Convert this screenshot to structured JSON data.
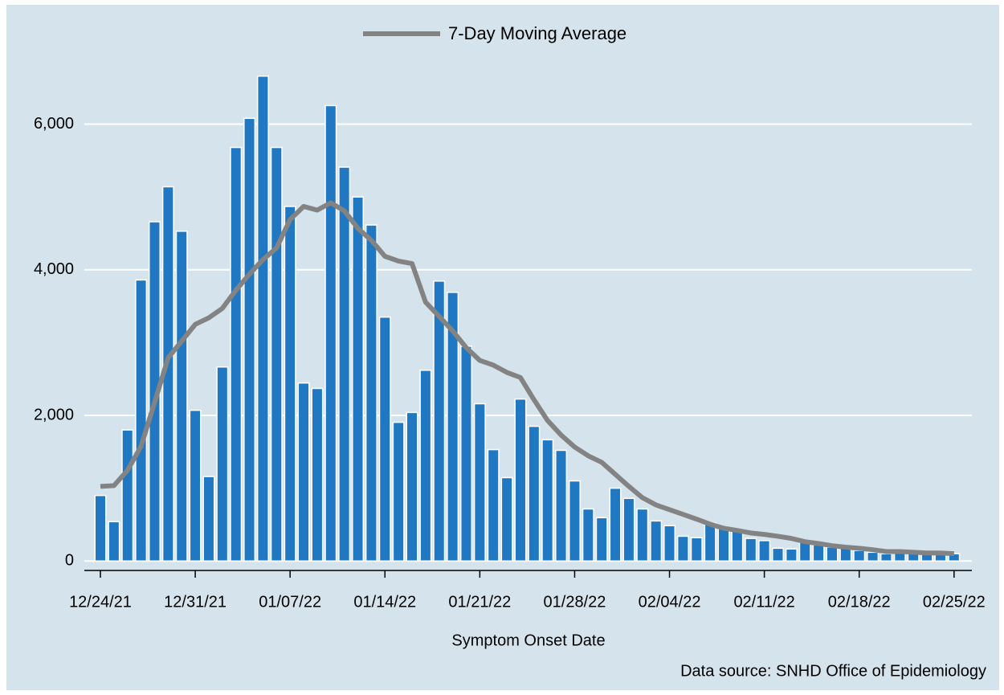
{
  "chart_data": {
    "type": "bar",
    "categories": [
      "12/24/21",
      null,
      null,
      null,
      null,
      null,
      null,
      "12/31/21",
      null,
      null,
      null,
      null,
      null,
      null,
      "01/07/22",
      null,
      null,
      null,
      null,
      null,
      null,
      "01/14/22",
      null,
      null,
      null,
      null,
      null,
      null,
      "01/21/22",
      null,
      null,
      null,
      null,
      null,
      null,
      "01/28/22",
      null,
      null,
      null,
      null,
      null,
      null,
      "02/04/22",
      null,
      null,
      null,
      null,
      null,
      null,
      "02/11/22",
      null,
      null,
      null,
      null,
      null,
      null,
      "02/18/22",
      null,
      null,
      null,
      null,
      null,
      null,
      "02/25/22"
    ],
    "series": [
      {
        "type": "bar",
        "color": "#1f78c1",
        "values": [
          900,
          540,
          1800,
          3860,
          4660,
          5140,
          4530,
          2070,
          1160,
          2665,
          5680,
          6080,
          6660,
          5680,
          4870,
          2445,
          2370,
          6255,
          5410,
          5000,
          4615,
          3350,
          1905,
          2040,
          2620,
          3845,
          3690,
          2950,
          2160,
          1530,
          1145,
          2225,
          1850,
          1665,
          1520,
          1100,
          715,
          595,
          1000,
          860,
          715,
          550,
          485,
          340,
          320,
          520,
          455,
          410,
          310,
          280,
          175,
          165,
          255,
          220,
          190,
          200,
          145,
          120,
          100,
          110,
          120,
          120,
          120,
          100
        ]
      },
      {
        "type": "line",
        "name": "7-Day Moving Average",
        "color": "#838383",
        "values": [
          1025,
          1035,
          1245,
          1575,
          2180,
          2790,
          3020,
          3250,
          3340,
          3470,
          3720,
          3940,
          4140,
          4300,
          4690,
          4870,
          4820,
          4920,
          4810,
          4570,
          4405,
          4185,
          4120,
          4085,
          3555,
          3360,
          3160,
          2930,
          2755,
          2690,
          2590,
          2520,
          2215,
          1930,
          1730,
          1565,
          1445,
          1355,
          1190,
          1025,
          870,
          770,
          705,
          640,
          575,
          505,
          450,
          420,
          385,
          365,
          340,
          310,
          265,
          240,
          210,
          190,
          175,
          155,
          130,
          130,
          120,
          110,
          110,
          100
        ]
      }
    ],
    "ylim": [
      -130,
      6900
    ],
    "yticks": [
      {
        "value": 0,
        "label": "0"
      },
      {
        "value": 2000,
        "label": "2,000"
      },
      {
        "value": 4000,
        "label": "4,000"
      },
      {
        "value": 6000,
        "label": "6,000"
      }
    ],
    "grid": true,
    "legend": "top",
    "xlabel": "Symptom Onset Date",
    "source": "Data source: SNHD Office of Epidemiology"
  }
}
